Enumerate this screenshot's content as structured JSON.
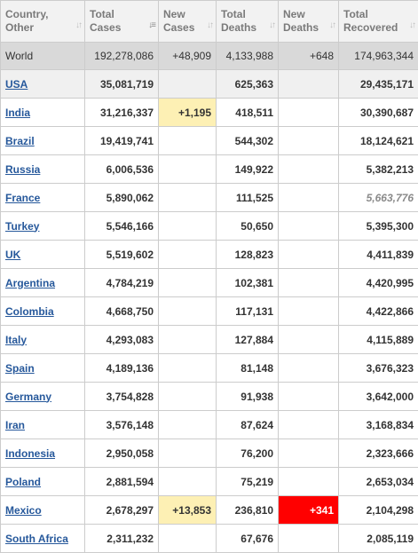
{
  "headers": [
    {
      "line1": "Country,",
      "line2": "Other"
    },
    {
      "line1": "Total",
      "line2": "Cases"
    },
    {
      "line1": "New",
      "line2": "Cases"
    },
    {
      "line1": "Total",
      "line2": "Deaths"
    },
    {
      "line1": "New",
      "line2": "Deaths"
    },
    {
      "line1": "Total",
      "line2": "Recovered"
    }
  ],
  "world": {
    "country": "World",
    "total_cases": "192,278,086",
    "new_cases": "+48,909",
    "total_deaths": "4,133,988",
    "new_deaths": "+648",
    "total_recovered": "174,963,344"
  },
  "rows": [
    {
      "country": "USA",
      "total_cases": "35,081,719",
      "new_cases": "",
      "total_deaths": "625,363",
      "new_deaths": "",
      "total_recovered": "29,435,171"
    },
    {
      "country": "India",
      "total_cases": "31,216,337",
      "new_cases": "+1,195",
      "total_deaths": "418,511",
      "new_deaths": "",
      "total_recovered": "30,390,687"
    },
    {
      "country": "Brazil",
      "total_cases": "19,419,741",
      "new_cases": "",
      "total_deaths": "544,302",
      "new_deaths": "",
      "total_recovered": "18,124,621"
    },
    {
      "country": "Russia",
      "total_cases": "6,006,536",
      "new_cases": "",
      "total_deaths": "149,922",
      "new_deaths": "",
      "total_recovered": "5,382,213"
    },
    {
      "country": "France",
      "total_cases": "5,890,062",
      "new_cases": "",
      "total_deaths": "111,525",
      "new_deaths": "",
      "total_recovered": "5,663,776"
    },
    {
      "country": "Turkey",
      "total_cases": "5,546,166",
      "new_cases": "",
      "total_deaths": "50,650",
      "new_deaths": "",
      "total_recovered": "5,395,300"
    },
    {
      "country": "UK",
      "total_cases": "5,519,602",
      "new_cases": "",
      "total_deaths": "128,823",
      "new_deaths": "",
      "total_recovered": "4,411,839"
    },
    {
      "country": "Argentina",
      "total_cases": "4,784,219",
      "new_cases": "",
      "total_deaths": "102,381",
      "new_deaths": "",
      "total_recovered": "4,420,995"
    },
    {
      "country": "Colombia",
      "total_cases": "4,668,750",
      "new_cases": "",
      "total_deaths": "117,131",
      "new_deaths": "",
      "total_recovered": "4,422,866"
    },
    {
      "country": "Italy",
      "total_cases": "4,293,083",
      "new_cases": "",
      "total_deaths": "127,884",
      "new_deaths": "",
      "total_recovered": "4,115,889"
    },
    {
      "country": "Spain",
      "total_cases": "4,189,136",
      "new_cases": "",
      "total_deaths": "81,148",
      "new_deaths": "",
      "total_recovered": "3,676,323"
    },
    {
      "country": "Germany",
      "total_cases": "3,754,828",
      "new_cases": "",
      "total_deaths": "91,938",
      "new_deaths": "",
      "total_recovered": "3,642,000"
    },
    {
      "country": "Iran",
      "total_cases": "3,576,148",
      "new_cases": "",
      "total_deaths": "87,624",
      "new_deaths": "",
      "total_recovered": "3,168,834"
    },
    {
      "country": "Indonesia",
      "total_cases": "2,950,058",
      "new_cases": "",
      "total_deaths": "76,200",
      "new_deaths": "",
      "total_recovered": "2,323,666"
    },
    {
      "country": "Poland",
      "total_cases": "2,881,594",
      "new_cases": "",
      "total_deaths": "75,219",
      "new_deaths": "",
      "total_recovered": "2,653,034"
    },
    {
      "country": "Mexico",
      "total_cases": "2,678,297",
      "new_cases": "+13,853",
      "total_deaths": "236,810",
      "new_deaths": "+341",
      "total_recovered": "2,104,298"
    },
    {
      "country": "South Africa",
      "total_cases": "2,311,232",
      "new_cases": "",
      "total_deaths": "67,676",
      "new_deaths": "",
      "total_recovered": "2,085,119"
    }
  ],
  "colors": {
    "header_bg": "#f2f2f2",
    "world_bg": "#d9d9d9",
    "link": "#26589b",
    "new_cases_highlight": "#fdf0b4",
    "new_deaths_highlight": "#ff0000"
  },
  "icons": {
    "sort": "sort-arrows-icon"
  }
}
